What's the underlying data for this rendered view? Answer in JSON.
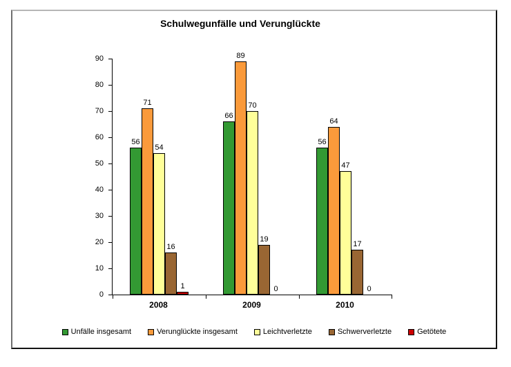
{
  "title": "Schulwegunfälle und Verunglückte",
  "chart_data": {
    "type": "bar",
    "title": "Schulwegunfälle und Verunglückte",
    "categories": [
      "2008",
      "2009",
      "2010"
    ],
    "series": [
      {
        "name": "Unfälle insgesamt",
        "color": "#339933",
        "values": [
          56,
          66,
          56
        ]
      },
      {
        "name": "Verunglückte insgesamt",
        "color": "#FA9A3B",
        "values": [
          71,
          89,
          64
        ]
      },
      {
        "name": "Leichtverletzte",
        "color": "#FFFF99",
        "values": [
          54,
          70,
          47
        ]
      },
      {
        "name": "Schwerverletzte",
        "color": "#996633",
        "values": [
          16,
          19,
          17
        ]
      },
      {
        "name": "Getötete",
        "color": "#CC0000",
        "values": [
          1,
          0,
          0
        ]
      }
    ],
    "xlabel": "",
    "ylabel": "",
    "ylim": [
      0,
      90
    ],
    "yticks": [
      0,
      10,
      20,
      30,
      40,
      50,
      60,
      70,
      80,
      90
    ],
    "grid": false,
    "legend_position": "bottom",
    "bar_border_color": "#000000",
    "axis_color": "#000000"
  }
}
